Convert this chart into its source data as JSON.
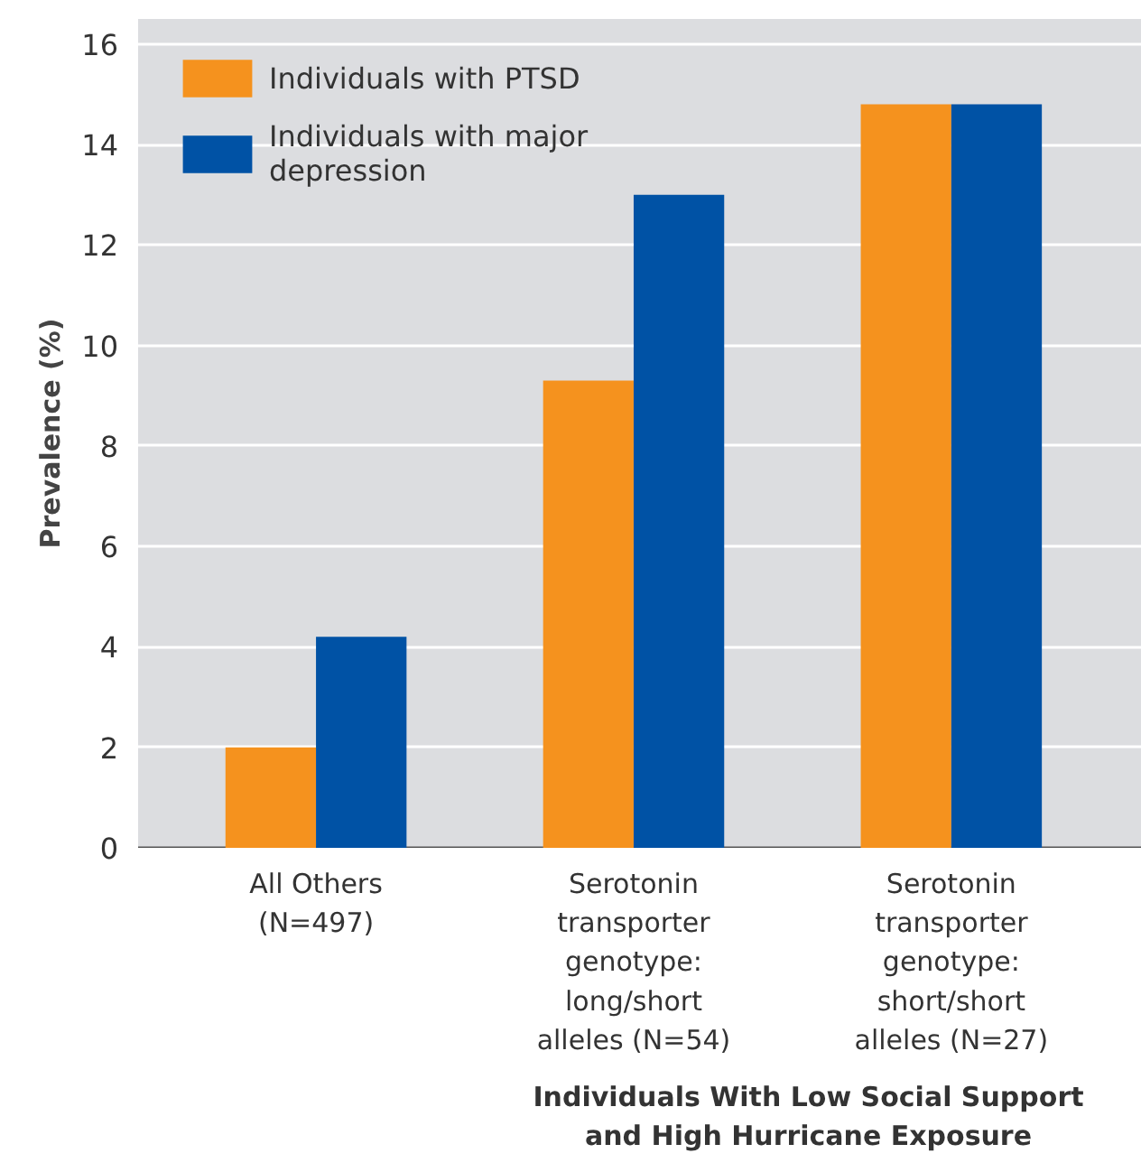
{
  "chart_data": {
    "type": "bar",
    "ylabel": "Prevalence (%)",
    "xlabel": "Individuals With Low Social Support and High Hurricane Exposure",
    "categories": [
      "All Others (N=497)",
      "Serotonin transporter genotype: long/short alleles (N=54)",
      "Serotonin transporter genotype: short/short alleles (N=27)"
    ],
    "series": [
      {
        "name": "Individuals with PTSD",
        "color": "#f5921e",
        "values": [
          2.0,
          9.3,
          14.8
        ]
      },
      {
        "name": "Individuals with major depression",
        "color": "#0052a5",
        "values": [
          4.2,
          13.0,
          14.8
        ]
      }
    ],
    "ylim": [
      0,
      16.5
    ],
    "yticks": [
      0,
      2,
      4,
      6,
      8,
      10,
      12,
      14,
      16
    ],
    "grid": "y",
    "legend": "top left"
  }
}
